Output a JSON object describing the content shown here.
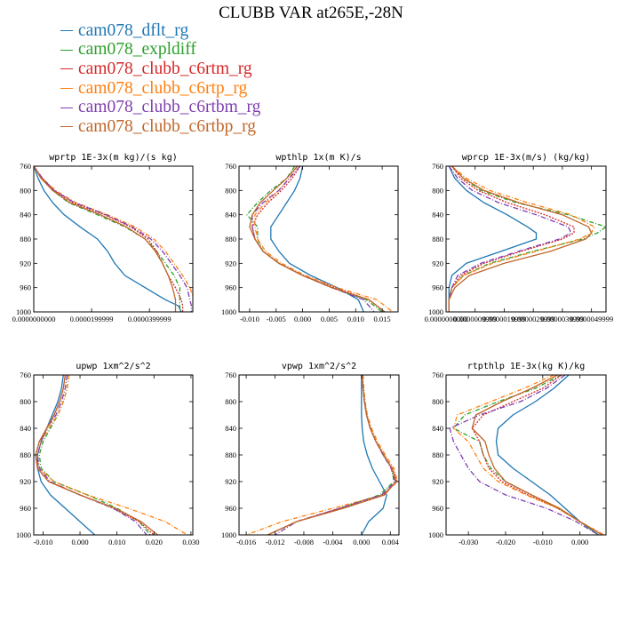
{
  "title": "CLUBB VAR at265E,-28N",
  "legend": [
    {
      "name": "cam078_dflt_rg",
      "color": "#1f77b4"
    },
    {
      "name": "cam078_expldiff",
      "color": "#2ca02c"
    },
    {
      "name": "cam078_clubb_c6rtm_rg",
      "color": "#d62728"
    },
    {
      "name": "cam078_clubb_c6rtp_rg",
      "color": "#ff7f0e"
    },
    {
      "name": "cam078_clubb_c6rtbm_rg",
      "color": "#7f3fb0"
    },
    {
      "name": "cam078_clubb_c6rtbp_rg",
      "color": "#c0662a"
    }
  ],
  "chart_data": [
    {
      "type": "line",
      "title": "wprtp  1E-3x(m kg)/(s kg)",
      "xlim": [
        0.0,
        5.5e-05
      ],
      "xticks": [
        0.0,
        2e-05,
        4e-05
      ],
      "xticklabels": [
        "0.0000000000",
        "0.0000199999",
        "0.0000399999"
      ],
      "ylim": [
        760,
        1000
      ],
      "yticks": [
        760,
        800,
        840,
        880,
        920,
        960,
        1000
      ],
      "y": [
        760,
        780,
        800,
        820,
        840,
        860,
        880,
        900,
        920,
        940,
        960,
        980,
        990,
        1000
      ],
      "series": [
        {
          "name": "cam078_dflt_rg",
          "values": [
            0.0,
            1.5e-06,
            3.5e-06,
            6.5e-06,
            1.05e-05,
            1.6e-05,
            2.2e-05,
            2.55e-05,
            2.8e-05,
            3.15e-05,
            3.85e-05,
            4.55e-05,
            5e-05,
            5.1e-05
          ]
        },
        {
          "name": "cam078_expldiff",
          "values": [
            0.0,
            3e-06,
            6.5e-06,
            1.2e-05,
            2.2e-05,
            3.15e-05,
            3.85e-05,
            4.25e-05,
            4.55e-05,
            4.85e-05,
            5.05e-05,
            5.05e-05,
            5.05e-05,
            5.05e-05
          ]
        },
        {
          "name": "cam078_clubb_c6rtm_rg",
          "values": [
            0.0,
            3e-06,
            7e-06,
            1.35e-05,
            2.45e-05,
            3.35e-05,
            3.95e-05,
            4.25e-05,
            4.45e-05,
            4.65e-05,
            4.9e-05,
            5.1e-05,
            5.15e-05,
            5.15e-05
          ]
        },
        {
          "name": "cam078_clubb_c6rtp_rg",
          "values": [
            0.0,
            3e-06,
            7.5e-06,
            1.45e-05,
            2.55e-05,
            3.5e-05,
            4.15e-05,
            4.55e-05,
            4.85e-05,
            5.15e-05,
            5.4e-05,
            5.55e-05,
            5.6e-05,
            5.6e-05
          ]
        },
        {
          "name": "cam078_clubb_c6rtbm_rg",
          "values": [
            0.0,
            3e-06,
            7e-06,
            1.4e-05,
            2.5e-05,
            3.4e-05,
            4.05e-05,
            4.45e-05,
            4.75e-05,
            5.05e-05,
            5.3e-05,
            5.4e-05,
            5.45e-05,
            5.45e-05
          ]
        },
        {
          "name": "cam078_clubb_c6rtbp_rg",
          "values": [
            0.0,
            2.5e-06,
            6.5e-06,
            1.25e-05,
            2.3e-05,
            3.2e-05,
            3.85e-05,
            4.2e-05,
            4.45e-05,
            4.65e-05,
            4.8e-05,
            4.9e-05,
            4.9e-05,
            4.9e-05
          ]
        }
      ]
    },
    {
      "type": "line",
      "title": "wpthlp  1x(m K)/s",
      "xlim": [
        -0.012,
        0.018
      ],
      "xticks": [
        -0.01,
        -0.005,
        0.0,
        0.005,
        0.01,
        0.015
      ],
      "xticklabels": [
        "-0.010",
        "-0.005",
        "0.000",
        "0.005",
        "0.010",
        "0.015"
      ],
      "ylim": [
        760,
        1000
      ],
      "yticks": [
        760,
        800,
        840,
        880,
        920,
        960,
        1000
      ],
      "y": [
        760,
        780,
        800,
        820,
        840,
        860,
        880,
        900,
        920,
        940,
        960,
        980,
        1000
      ],
      "series": [
        {
          "name": "cam078_dflt_rg",
          "values": [
            0.0,
            -0.0005,
            -0.0015,
            -0.003,
            -0.0045,
            -0.006,
            -0.006,
            -0.0045,
            -0.0025,
            0.0015,
            0.0065,
            0.0105,
            0.0115
          ]
        },
        {
          "name": "cam078_expldiff",
          "values": [
            -0.0015,
            -0.003,
            -0.006,
            -0.0085,
            -0.0105,
            -0.0085,
            -0.0085,
            -0.0075,
            -0.0045,
            0.0,
            0.0055,
            0.012,
            0.015
          ]
        },
        {
          "name": "cam078_clubb_c6rtm_rg",
          "values": [
            -0.0005,
            -0.002,
            -0.004,
            -0.0065,
            -0.0085,
            -0.0095,
            -0.009,
            -0.0075,
            -0.0045,
            0.0,
            0.006,
            0.0125,
            0.0155
          ]
        },
        {
          "name": "cam078_clubb_c6rtp_rg",
          "values": [
            -0.001,
            -0.0025,
            -0.0045,
            -0.007,
            -0.009,
            -0.009,
            -0.0085,
            -0.007,
            -0.004,
            0.0005,
            0.0065,
            0.014,
            0.017
          ]
        },
        {
          "name": "cam078_clubb_c6rtbm_rg",
          "values": [
            -0.0005,
            -0.0025,
            -0.0045,
            -0.0075,
            -0.0095,
            -0.0095,
            -0.009,
            -0.0075,
            -0.0045,
            0.0,
            0.0055,
            0.0115,
            0.0135
          ]
        },
        {
          "name": "cam078_clubb_c6rtbp_rg",
          "values": [
            -0.001,
            -0.003,
            -0.0055,
            -0.008,
            -0.0095,
            -0.01,
            -0.009,
            -0.0075,
            -0.0045,
            0.0,
            0.0055,
            0.0125,
            0.0155
          ]
        }
      ]
    },
    {
      "type": "line",
      "title": "wprcp  1E-3x(m/s) (kg/kg)",
      "xlim": [
        0.0,
        5.5e-06
      ],
      "xticks": [
        0.0,
        1e-06,
        2e-06,
        3e-06,
        4e-06,
        5e-06
      ],
      "xticklabels": [
        "0.0000000000",
        "0.0000009999",
        "0.0000019999",
        "0.0000029999",
        "0.0000039999",
        "0.0000049999"
      ],
      "ylim": [
        760,
        1000
      ],
      "yticks": [
        760,
        800,
        840,
        880,
        920,
        960,
        1000
      ],
      "y": [
        760,
        780,
        800,
        820,
        840,
        860,
        870,
        880,
        900,
        920,
        940,
        960,
        980,
        1000
      ],
      "series": [
        {
          "name": "cam078_dflt_rg",
          "values": [
            1e-07,
            3e-07,
            7e-07,
            1.3e-06,
            2.1e-06,
            2.8e-06,
            3.1e-06,
            3.1e-06,
            1.9e-06,
            7e-07,
            2e-07,
            1e-07,
            1e-07,
            1e-07
          ]
        },
        {
          "name": "cam078_expldiff",
          "values": [
            2e-07,
            6e-07,
            1.2e-06,
            2.4e-06,
            4.2e-06,
            5.5e-06,
            5.2e-06,
            4.7e-06,
            3e-06,
            1.5e-06,
            6e-07,
            2e-07,
            1e-07,
            1e-07
          ]
        },
        {
          "name": "cam078_clubb_c6rtm_rg",
          "values": [
            2e-07,
            5e-07,
            1.1e-06,
            2.1e-06,
            3.4e-06,
            4.4e-06,
            4.4e-06,
            4e-06,
            2.6e-06,
            1.3e-06,
            5e-07,
            2e-07,
            1e-07,
            1e-07
          ]
        },
        {
          "name": "cam078_clubb_c6rtp_rg",
          "values": [
            2e-07,
            7e-07,
            1.5e-06,
            2.8e-06,
            4.3e-06,
            5.1e-06,
            5e-06,
            4.6e-06,
            3.1e-06,
            1.6e-06,
            6e-07,
            2e-07,
            1e-07,
            1e-07
          ]
        },
        {
          "name": "cam078_clubb_c6rtbm_rg",
          "values": [
            1e-07,
            4e-07,
            9e-07,
            1.8e-06,
            3.1e-06,
            4.2e-06,
            4.3e-06,
            3.9e-06,
            2.5e-06,
            1.2e-06,
            4e-07,
            2e-07,
            1e-07,
            1e-07
          ]
        },
        {
          "name": "cam078_clubb_c6rtbp_rg",
          "values": [
            2e-07,
            6e-07,
            1.3e-06,
            2.5e-06,
            4e-06,
            4.9e-06,
            5e-06,
            4.8e-06,
            3.6e-06,
            2e-06,
            8e-07,
            3e-07,
            1e-07,
            1e-07
          ]
        }
      ]
    },
    {
      "type": "line",
      "title": "upwp  1xm^2/s^2",
      "xlim": [
        -0.0125,
        0.0305
      ],
      "xticks": [
        -0.01,
        0.0,
        0.01,
        0.02,
        0.03
      ],
      "xticklabels": [
        "-0.010",
        "0.000",
        "0.010",
        "0.020",
        "0.030"
      ],
      "ylim": [
        760,
        1000
      ],
      "yticks": [
        760,
        800,
        840,
        880,
        920,
        960,
        1000
      ],
      "y": [
        760,
        780,
        800,
        820,
        840,
        860,
        880,
        900,
        920,
        940,
        960,
        980,
        1000
      ],
      "series": [
        {
          "name": "cam078_dflt_rg",
          "values": [
            -0.0045,
            -0.005,
            -0.006,
            -0.0075,
            -0.009,
            -0.0105,
            -0.0115,
            -0.0115,
            -0.0105,
            -0.008,
            -0.004,
            0.0,
            0.004
          ]
        },
        {
          "name": "cam078_expldiff",
          "values": [
            -0.003,
            -0.0035,
            -0.0045,
            -0.006,
            -0.008,
            -0.01,
            -0.011,
            -0.0105,
            -0.007,
            0.002,
            0.01,
            0.016,
            0.019
          ]
        },
        {
          "name": "cam078_clubb_c6rtm_rg",
          "values": [
            -0.004,
            -0.0045,
            -0.0055,
            -0.007,
            -0.009,
            -0.011,
            -0.012,
            -0.0115,
            -0.0085,
            0.0,
            0.009,
            0.016,
            0.02
          ]
        },
        {
          "name": "cam078_clubb_c6rtp_rg",
          "values": [
            -0.003,
            -0.0035,
            -0.0045,
            -0.006,
            -0.0085,
            -0.0105,
            -0.0115,
            -0.011,
            -0.007,
            0.002,
            0.013,
            0.023,
            0.029
          ]
        },
        {
          "name": "cam078_clubb_c6rtbm_rg",
          "values": [
            -0.0035,
            -0.004,
            -0.005,
            -0.0065,
            -0.009,
            -0.0105,
            -0.0115,
            -0.011,
            -0.008,
            0.0,
            0.009,
            0.015,
            0.018
          ]
        },
        {
          "name": "cam078_clubb_c6rtbp_rg",
          "values": [
            -0.004,
            -0.0045,
            -0.0055,
            -0.007,
            -0.009,
            -0.011,
            -0.012,
            -0.0115,
            -0.0085,
            0.0,
            0.0095,
            0.0165,
            0.021
          ]
        }
      ]
    },
    {
      "type": "line",
      "title": "vpwp  1xm^2/s^2",
      "xlim": [
        -0.017,
        0.0052
      ],
      "xticks": [
        -0.016,
        -0.012,
        -0.008,
        -0.004,
        0.0,
        0.004
      ],
      "xticklabels": [
        "-0.016",
        "-0.012",
        "-0.008",
        "-0.004",
        "0.000",
        "0.004"
      ],
      "ylim": [
        760,
        1000
      ],
      "yticks": [
        760,
        800,
        840,
        880,
        920,
        960,
        1000
      ],
      "y": [
        760,
        780,
        800,
        820,
        840,
        860,
        880,
        900,
        920,
        940,
        960,
        980,
        1000
      ],
      "series": [
        {
          "name": "cam078_dflt_rg",
          "values": [
            0.0,
            0.0,
            0.0,
            0.0,
            0.0001,
            0.0003,
            0.0008,
            0.0015,
            0.0025,
            0.0035,
            0.003,
            0.001,
            0.0
          ]
        },
        {
          "name": "cam078_expldiff",
          "values": [
            0.0002,
            0.0003,
            0.0005,
            0.0008,
            0.0013,
            0.002,
            0.003,
            0.0042,
            0.0045,
            0.0025,
            -0.003,
            -0.009,
            -0.013
          ]
        },
        {
          "name": "cam078_clubb_c6rtm_rg",
          "values": [
            0.0001,
            0.0002,
            0.0004,
            0.0007,
            0.0012,
            0.002,
            0.003,
            0.0043,
            0.0049,
            0.003,
            -0.003,
            -0.009,
            -0.013
          ]
        },
        {
          "name": "cam078_clubb_c6rtp_rg",
          "values": [
            0.0002,
            0.0003,
            0.0005,
            0.0008,
            0.0014,
            0.0022,
            0.0033,
            0.0045,
            0.005,
            0.003,
            -0.004,
            -0.011,
            -0.016
          ]
        },
        {
          "name": "cam078_clubb_c6rtbm_rg",
          "values": [
            0.0001,
            0.0002,
            0.0004,
            0.0007,
            0.0012,
            0.002,
            0.003,
            0.0041,
            0.0047,
            0.0028,
            -0.003,
            -0.009,
            -0.012
          ]
        },
        {
          "name": "cam078_clubb_c6rtbp_rg",
          "values": [
            0.0001,
            0.0002,
            0.0004,
            0.0007,
            0.0012,
            0.002,
            0.0031,
            0.0042,
            0.0048,
            0.0032,
            -0.0025,
            -0.009,
            -0.013
          ]
        }
      ]
    },
    {
      "type": "line",
      "title": "rtpthlp  1E-3x(kg K)/kg",
      "xlim": [
        -0.036,
        0.007
      ],
      "xticks": [
        -0.03,
        -0.02,
        -0.01,
        0.0
      ],
      "xticklabels": [
        "-0.030",
        "-0.020",
        "-0.010",
        "0.000"
      ],
      "ylim": [
        760,
        1000
      ],
      "yticks": [
        760,
        800,
        840,
        880,
        920,
        960,
        1000
      ],
      "y": [
        760,
        780,
        800,
        820,
        840,
        860,
        880,
        900,
        920,
        940,
        960,
        980,
        1000
      ],
      "series": [
        {
          "name": "cam078_dflt_rg",
          "values": [
            -0.003,
            -0.007,
            -0.012,
            -0.018,
            -0.022,
            -0.0225,
            -0.022,
            -0.018,
            -0.013,
            -0.008,
            -0.004,
            0.0,
            0.005
          ]
        },
        {
          "name": "cam078_expldiff",
          "values": [
            -0.005,
            -0.012,
            -0.022,
            -0.031,
            -0.034,
            -0.027,
            -0.026,
            -0.024,
            -0.02,
            -0.013,
            -0.006,
            0.0,
            0.005
          ]
        },
        {
          "name": "cam078_clubb_c6rtm_rg",
          "values": [
            -0.005,
            -0.01,
            -0.018,
            -0.026,
            -0.029,
            -0.027,
            -0.026,
            -0.0245,
            -0.021,
            -0.014,
            -0.006,
            0.0,
            0.006
          ]
        },
        {
          "name": "cam078_clubb_c6rtp_rg",
          "values": [
            -0.007,
            -0.015,
            -0.024,
            -0.033,
            -0.034,
            -0.03,
            -0.028,
            -0.026,
            -0.022,
            -0.0145,
            -0.006,
            0.0,
            0.0065
          ]
        },
        {
          "name": "cam078_clubb_c6rtbm_rg",
          "values": [
            -0.004,
            -0.009,
            -0.016,
            -0.027,
            -0.035,
            -0.034,
            -0.032,
            -0.03,
            -0.027,
            -0.02,
            -0.009,
            -0.001,
            0.005
          ]
        },
        {
          "name": "cam078_clubb_c6rtbp_rg",
          "values": [
            -0.006,
            -0.013,
            -0.021,
            -0.028,
            -0.029,
            -0.0255,
            -0.0245,
            -0.023,
            -0.02,
            -0.013,
            -0.0055,
            0.0,
            0.006
          ]
        }
      ]
    }
  ]
}
